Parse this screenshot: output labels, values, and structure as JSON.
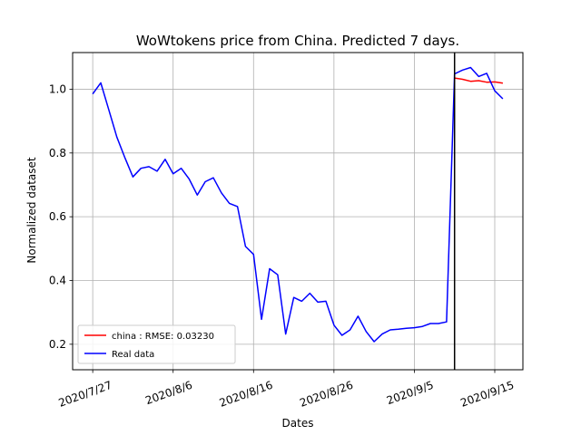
{
  "chart_data": {
    "type": "line",
    "title": "WoWtokens price from China. Predicted 7 days.",
    "xlabel": "Dates",
    "ylabel": "Normalized dataset",
    "x_ticks": [
      {
        "day": 0,
        "label": "2020/7/27"
      },
      {
        "day": 10,
        "label": "2020/8/6"
      },
      {
        "day": 20,
        "label": "2020/8/16"
      },
      {
        "day": 30,
        "label": "2020/8/26"
      },
      {
        "day": 40,
        "label": "2020/9/5"
      },
      {
        "day": 50,
        "label": "2020/9/15"
      }
    ],
    "y_ticks": [
      0.2,
      0.4,
      0.6,
      0.8,
      1.0
    ],
    "xlim": [
      -2.5,
      53.5
    ],
    "ylim": [
      0.12,
      1.115
    ],
    "grid": true,
    "legend_position": "lower-left",
    "vline_day": 45,
    "series": [
      {
        "name": "china : RMSE: 0.03230",
        "color": "#ff0000",
        "x": [
          45,
          46,
          47,
          48,
          49,
          50,
          51
        ],
        "y": [
          1.035,
          1.031,
          1.025,
          1.027,
          1.022,
          1.023,
          1.019
        ]
      },
      {
        "name": "Real data",
        "color": "#0000ff",
        "x": [
          0,
          1,
          2,
          3,
          4,
          5,
          6,
          7,
          8,
          9,
          10,
          11,
          12,
          13,
          14,
          15,
          16,
          17,
          18,
          19,
          20,
          21,
          22,
          23,
          24,
          25,
          26,
          27,
          28,
          29,
          30,
          31,
          32,
          33,
          34,
          35,
          36,
          37,
          38,
          39,
          40,
          41,
          42,
          43,
          44,
          45,
          46,
          47,
          48,
          49,
          50,
          51
        ],
        "y": [
          0.985,
          1.02,
          0.935,
          0.85,
          0.785,
          0.725,
          0.752,
          0.757,
          0.743,
          0.78,
          0.735,
          0.752,
          0.718,
          0.668,
          0.71,
          0.722,
          0.675,
          0.642,
          0.632,
          0.507,
          0.482,
          0.278,
          0.437,
          0.418,
          0.232,
          0.347,
          0.335,
          0.36,
          0.332,
          0.335,
          0.26,
          0.228,
          0.245,
          0.288,
          0.24,
          0.208,
          0.232,
          0.245,
          0.247,
          0.25,
          0.252,
          0.256,
          0.265,
          0.265,
          0.27,
          1.048,
          1.06,
          1.068,
          1.04,
          1.05,
          0.995,
          0.97
        ]
      }
    ]
  }
}
